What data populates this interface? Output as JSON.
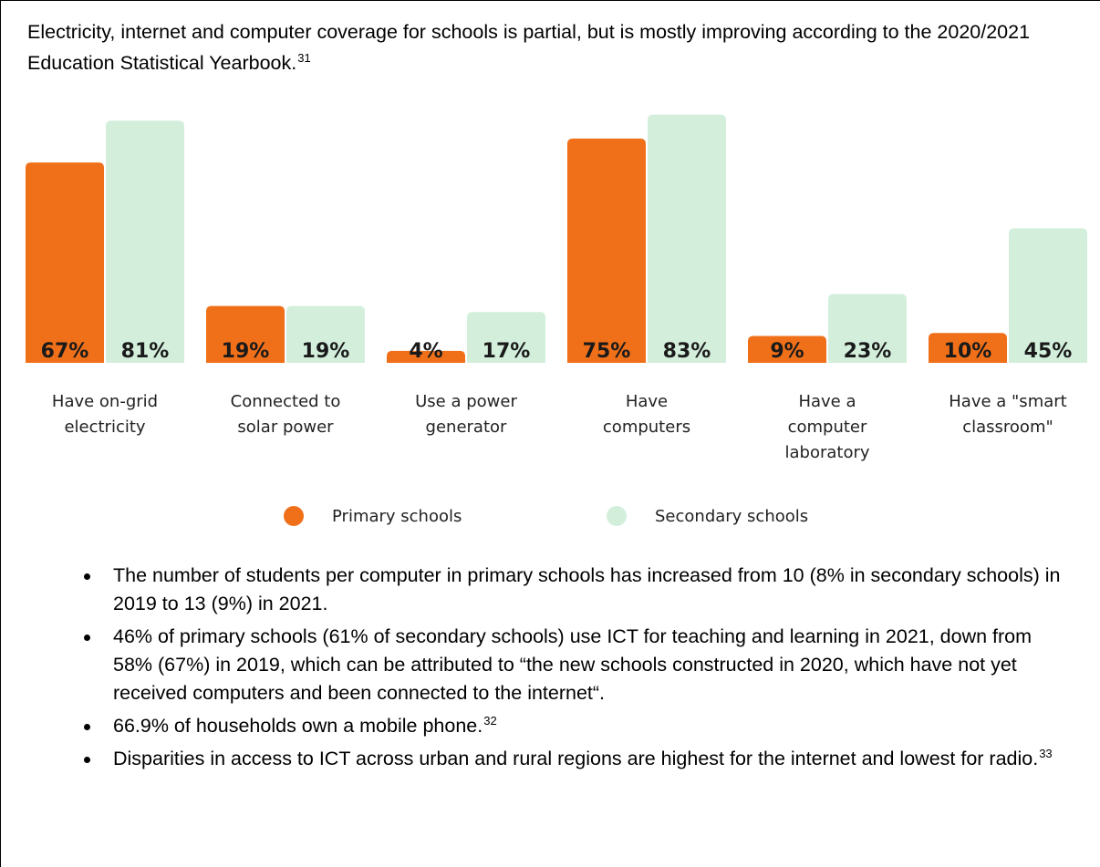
{
  "intro": {
    "text": "Electricity, internet and computer coverage for schools is partial, but is mostly improving according to the 2020/2021 Education Statistical Yearbook.",
    "footnote": "31"
  },
  "chart_data": {
    "type": "bar",
    "categories": [
      [
        "Have on-grid",
        "electricity"
      ],
      [
        "Connected to",
        "solar power"
      ],
      [
        "Use a power",
        "generator"
      ],
      [
        "Have",
        "computers"
      ],
      [
        "Have a",
        "computer",
        "laboratory"
      ],
      [
        "Have a \"smart",
        "classroom\""
      ]
    ],
    "series": [
      {
        "name": "Primary schools",
        "values": [
          67,
          19,
          4,
          75,
          9,
          10
        ],
        "labels": [
          "67%",
          "19%",
          "4%",
          "75%",
          "9%",
          "10%"
        ],
        "color": "#f07019"
      },
      {
        "name": "Secondary schools",
        "values": [
          81,
          19,
          17,
          83,
          23,
          45
        ],
        "labels": [
          "81%",
          "19%",
          "17%",
          "83%",
          "23%",
          "45%"
        ],
        "color": "#d3efdc"
      }
    ],
    "ylim": [
      0,
      83
    ],
    "legend_position": "bottom-center",
    "grid": false
  },
  "bullets": [
    {
      "text": "The number of students per computer in primary schools has increased from 10 (8% in secondary schools) in 2019 to 13 (9%) in 2021.",
      "footnote": ""
    },
    {
      "text": "46% of primary schools (61% of secondary schools) use ICT for teaching and learning in 2021, down from 58% (67%) in 2019, which can be attributed to “the new schools constructed in 2020, which have not yet received computers and been connected to the internet“.",
      "footnote": ""
    },
    {
      "text": "66.9% of households own a mobile phone.",
      "footnote": "32"
    },
    {
      "text": "Disparities in access to ICT across urban and rural regions are highest for the internet and lowest for radio.",
      "footnote": "33"
    }
  ]
}
